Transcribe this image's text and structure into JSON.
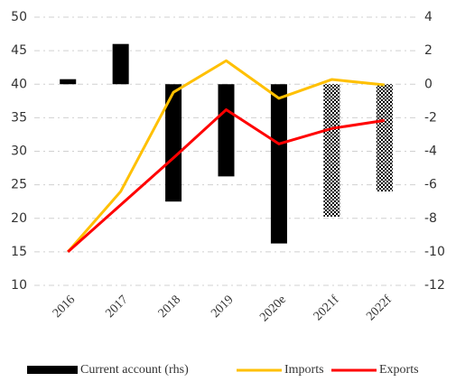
{
  "chart_data": {
    "type": "bar_line",
    "categories": [
      "2016",
      "2017",
      "2018",
      "2019",
      "2020e",
      "2021f",
      "2022f"
    ],
    "series": [
      {
        "name": "Current account (rhs)",
        "type": "bar",
        "axis": "y2",
        "color": "#000000",
        "values": [
          0.3,
          2.4,
          -7.0,
          -5.5,
          -9.5,
          -7.9,
          -6.4
        ],
        "patterns": [
          null,
          null,
          null,
          null,
          null,
          "checker",
          "checker"
        ]
      },
      {
        "name": "Imports",
        "type": "line",
        "color": "#ffc000",
        "values": [
          15,
          24,
          38.8,
          43.5,
          37.9,
          40.7,
          39.9
        ]
      },
      {
        "name": "Exports",
        "type": "line",
        "color": "#ff0000",
        "values": [
          15,
          22,
          29,
          36.2,
          31.1,
          33.4,
          34.6
        ]
      }
    ],
    "ylim": [
      10,
      50
    ],
    "yticks": [
      10,
      15,
      20,
      25,
      30,
      35,
      40,
      45,
      50
    ],
    "y2lim": [
      -12,
      4
    ],
    "y2ticks": [
      -12,
      -10,
      -8,
      -6,
      -4,
      -2,
      0,
      2,
      4
    ],
    "grid": true,
    "legend": "bottom"
  }
}
